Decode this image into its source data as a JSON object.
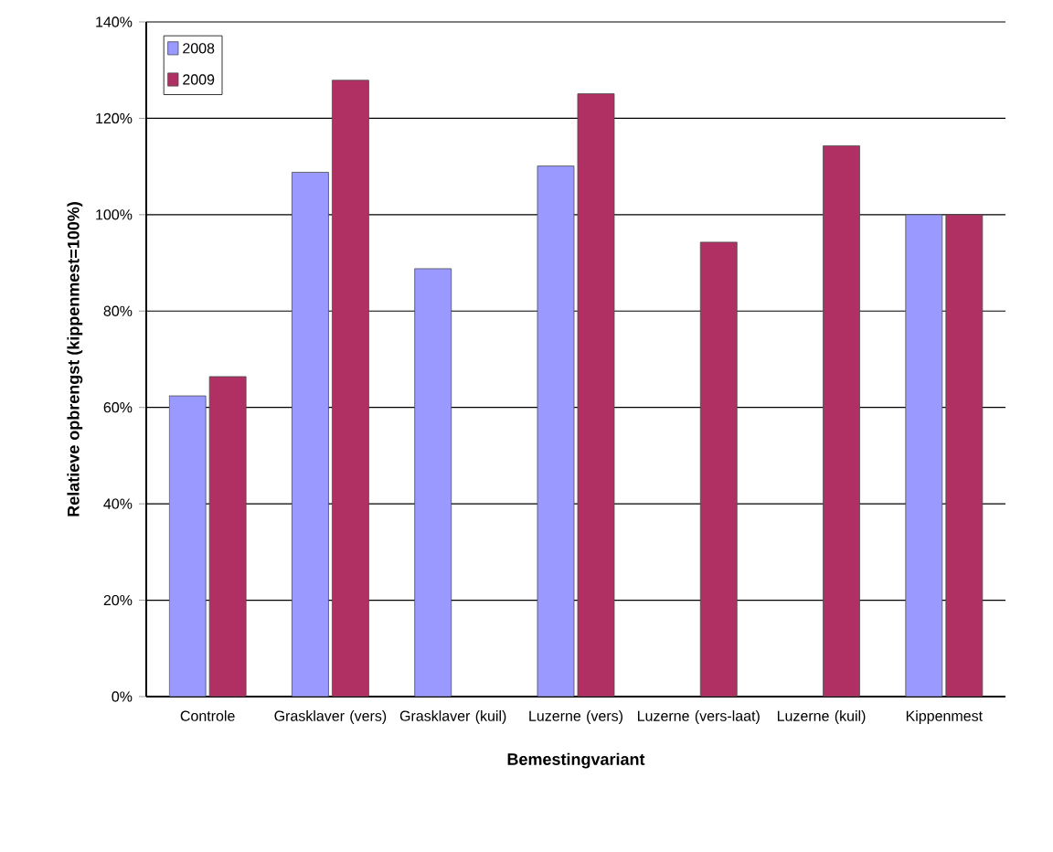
{
  "chart_data": {
    "type": "bar",
    "xlabel": "Bemestingvariant",
    "ylabel": "Relatieve opbrengst (kippenmest=100%)",
    "categories": [
      "Controle",
      "Grasklaver (vers)",
      "Grasklaver (kuil)",
      "Luzerne (vers)",
      "Luzerne (vers-laat)",
      "Luzerne (kuil)",
      "Kippenmest"
    ],
    "series": [
      {
        "name": "2008",
        "color": "#9999ff",
        "values": [
          62.4,
          108.8,
          88.8,
          110.1,
          null,
          null,
          100
        ]
      },
      {
        "name": "2009",
        "color": "#b03063",
        "values": [
          66.4,
          127.9,
          null,
          125.1,
          94.3,
          114.3,
          100
        ]
      }
    ],
    "ylim": [
      0,
      140
    ],
    "yticks": [
      {
        "value": 0,
        "label": "0%"
      },
      {
        "value": 20,
        "label": "20%"
      },
      {
        "value": 40,
        "label": "40%"
      },
      {
        "value": 60,
        "label": "60%"
      },
      {
        "value": 80,
        "label": "80%"
      },
      {
        "value": 100,
        "label": "100%"
      },
      {
        "value": 120,
        "label": "120%"
      },
      {
        "value": 140,
        "label": "140%"
      }
    ],
    "grid": "y",
    "legend": "top left"
  }
}
